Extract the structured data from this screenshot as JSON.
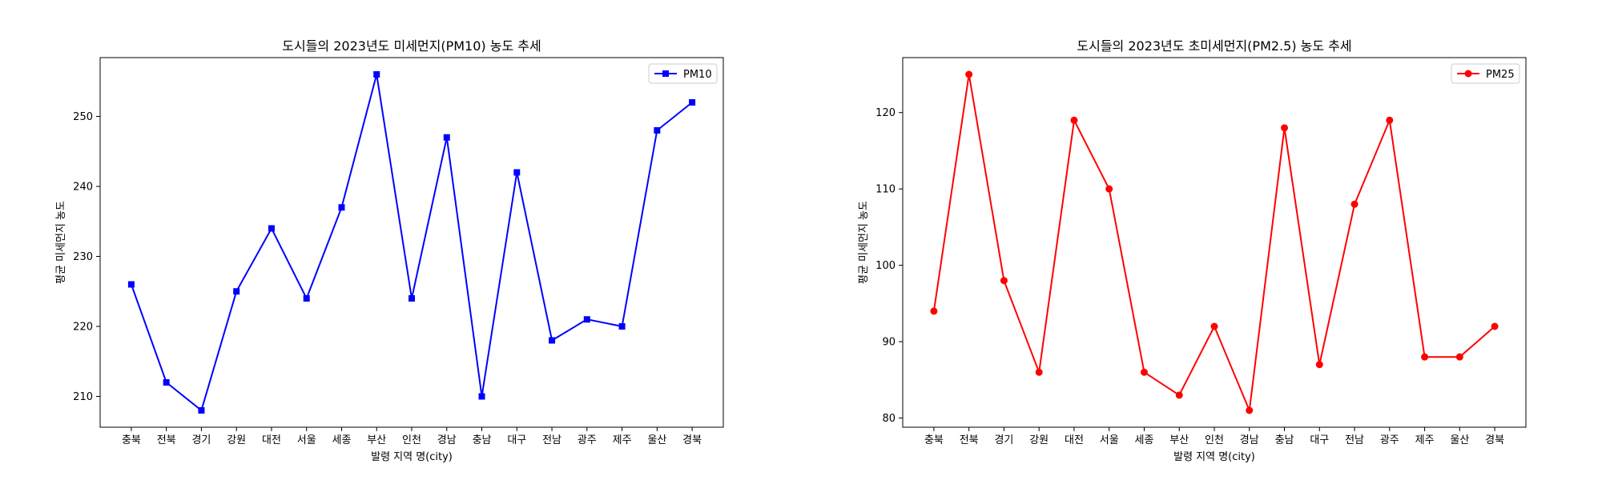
{
  "chart_data": [
    {
      "type": "line",
      "title": "도시들의 2023년도 미세먼지(PM10) 농도 추세",
      "xlabel": "발령 지역 명(city)",
      "ylabel": "평균 미세먼지 농도",
      "categories": [
        "충북",
        "전북",
        "경기",
        "강원",
        "대전",
        "서울",
        "세종",
        "부산",
        "인천",
        "경남",
        "충남",
        "대구",
        "전남",
        "광주",
        "제주",
        "울산",
        "경북"
      ],
      "series": [
        {
          "name": "PM10",
          "color": "#0000ff",
          "marker": "square",
          "values": [
            226,
            212,
            208,
            225,
            234,
            224,
            237,
            256,
            224,
            247,
            210,
            242,
            218,
            221,
            220,
            248,
            252
          ]
        }
      ],
      "ylim": [
        205.6,
        258.4
      ],
      "yticks": [
        210,
        220,
        230,
        240,
        250
      ],
      "legend": "top-right",
      "grid": false
    },
    {
      "type": "line",
      "title": "도시들의 2023년도 초미세먼지(PM2.5) 농도 추세",
      "xlabel": "발령 지역 명(city)",
      "ylabel": "평균 미세먼지 농도",
      "categories": [
        "충북",
        "전북",
        "경기",
        "강원",
        "대전",
        "서울",
        "세종",
        "부산",
        "인천",
        "경남",
        "충남",
        "대구",
        "전남",
        "광주",
        "제주",
        "울산",
        "경북"
      ],
      "series": [
        {
          "name": "PM25",
          "color": "#ff0000",
          "marker": "circle",
          "values": [
            94,
            125,
            98,
            86,
            119,
            110,
            86,
            83,
            92,
            81,
            118,
            87,
            108,
            119,
            88,
            88,
            92
          ]
        }
      ],
      "ylim": [
        78.8,
        127.2
      ],
      "yticks": [
        80,
        90,
        100,
        110,
        120
      ],
      "legend": "top-right",
      "grid": false
    }
  ]
}
